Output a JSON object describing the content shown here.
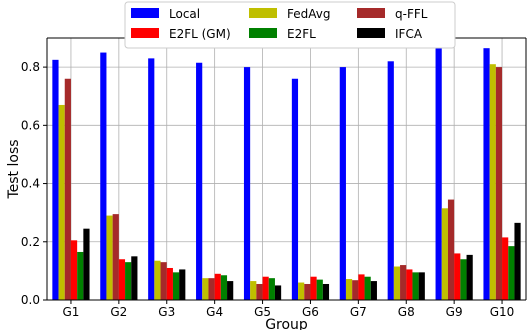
{
  "chart_data": {
    "type": "bar",
    "title": "",
    "xlabel": "Group",
    "ylabel": "Test loss",
    "ylim": [
      0,
      0.9
    ],
    "yticks": [
      0.0,
      0.2,
      0.4,
      0.6,
      0.8
    ],
    "ytick_labels": [
      "0.0",
      "0.2",
      "0.4",
      "0.6",
      "0.8"
    ],
    "grid": true,
    "legend_position": "top-center",
    "legend_columns": 3,
    "categories": [
      "G1",
      "G2",
      "G3",
      "G4",
      "G5",
      "G6",
      "G7",
      "G8",
      "G9",
      "G10"
    ],
    "series": [
      {
        "name": "Local",
        "color": "#0000ff",
        "values": [
          0.825,
          0.85,
          0.83,
          0.815,
          0.8,
          0.76,
          0.8,
          0.82,
          0.865,
          0.865
        ]
      },
      {
        "name": "FedAvg",
        "color": "#bfbf00",
        "values": [
          0.67,
          0.29,
          0.135,
          0.075,
          0.065,
          0.06,
          0.072,
          0.115,
          0.315,
          0.81
        ]
      },
      {
        "name": "q-FFL",
        "color": "#a52a2a",
        "values": [
          0.76,
          0.295,
          0.13,
          0.075,
          0.055,
          0.055,
          0.068,
          0.12,
          0.345,
          0.8
        ]
      },
      {
        "name": "E2FL (GM)",
        "color": "#ff0000",
        "values": [
          0.205,
          0.14,
          0.11,
          0.09,
          0.08,
          0.08,
          0.088,
          0.105,
          0.16,
          0.215
        ]
      },
      {
        "name": "E2FL",
        "color": "#008000",
        "values": [
          0.165,
          0.13,
          0.095,
          0.085,
          0.075,
          0.07,
          0.08,
          0.095,
          0.14,
          0.185
        ]
      },
      {
        "name": "IFCA",
        "color": "#000000",
        "values": [
          0.245,
          0.15,
          0.105,
          0.065,
          0.05,
          0.055,
          0.065,
          0.095,
          0.155,
          0.265
        ]
      }
    ]
  }
}
